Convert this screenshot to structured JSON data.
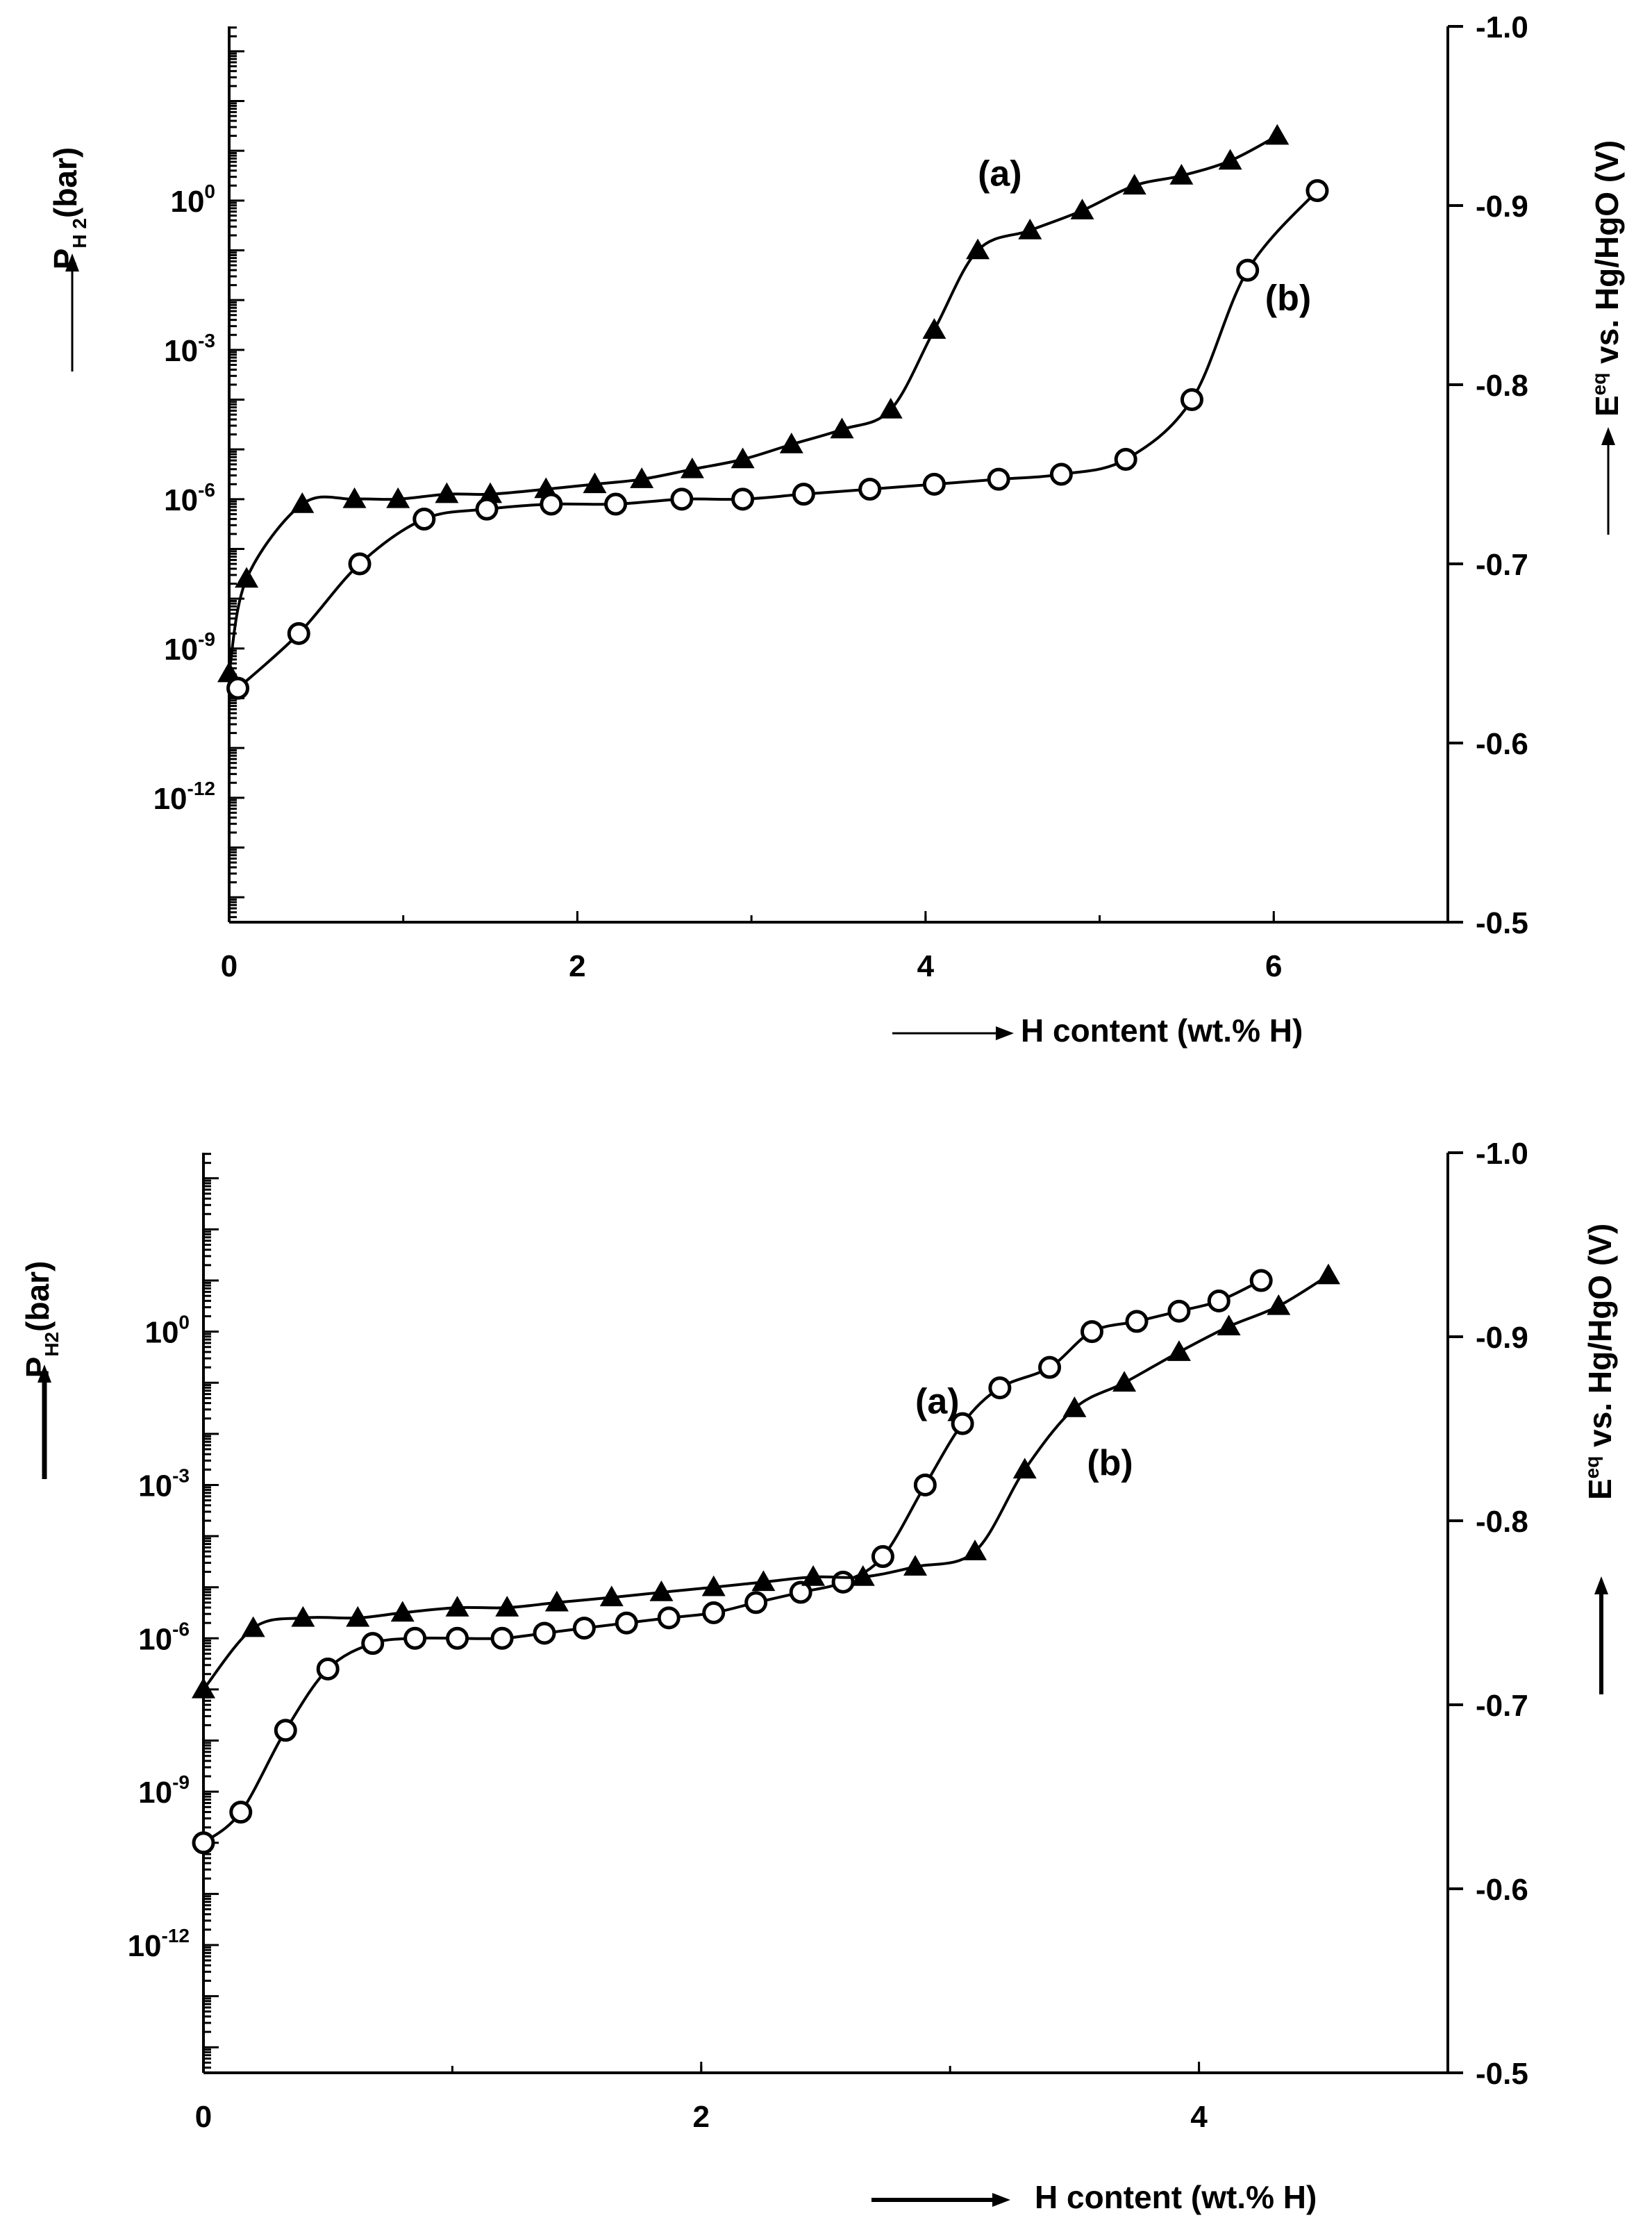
{
  "chart_data": [
    {
      "type": "scatter",
      "xlabel": "H content  (wt.% H)",
      "ylabel_left": {
        "base": "P",
        "sub": "H 2",
        "unit": "(bar)"
      },
      "ylabel_right": {
        "base": "E",
        "sup": "eq",
        "rest": "vs. Hg/HgO (V)"
      },
      "xlim": [
        0,
        7
      ],
      "x_ticks": [
        "0",
        "2",
        "4",
        "6"
      ],
      "x_tick_values": [
        0,
        2,
        4,
        6
      ],
      "ylim_log10": [
        -14.5,
        3.5
      ],
      "y_left_ticks": [
        {
          "exp": 0,
          "label_base": "10",
          "label_exp": "0"
        },
        {
          "exp": -3,
          "label_base": "10",
          "label_exp": "-3"
        },
        {
          "exp": -6,
          "label_base": "10",
          "label_exp": "-6"
        },
        {
          "exp": -9,
          "label_base": "10",
          "label_exp": "-9"
        },
        {
          "exp": -12,
          "label_base": "10",
          "label_exp": "-12"
        }
      ],
      "y_right_ticks": [
        "-1.0",
        "-0.9",
        "-0.8",
        "-0.7",
        "-0.6",
        "-0.5"
      ],
      "y_right_lim": [
        -0.5,
        -1.0
      ],
      "series": [
        {
          "name": "(a)",
          "marker": "filled-triangle",
          "label_pos": {
            "x": 4.3,
            "log10": 0.3
          },
          "points": [
            [
              0.0,
              -9.5
            ],
            [
              0.1,
              -7.6
            ],
            [
              0.42,
              -6.1
            ],
            [
              0.72,
              -6.0
            ],
            [
              0.97,
              -6.0
            ],
            [
              1.25,
              -5.9
            ],
            [
              1.5,
              -5.9
            ],
            [
              1.82,
              -5.8
            ],
            [
              2.1,
              -5.7
            ],
            [
              2.37,
              -5.6
            ],
            [
              2.66,
              -5.4
            ],
            [
              2.95,
              -5.2
            ],
            [
              3.23,
              -4.9
            ],
            [
              3.52,
              -4.6
            ],
            [
              3.8,
              -4.2
            ],
            [
              4.05,
              -2.6
            ],
            [
              4.3,
              -1.0
            ],
            [
              4.6,
              -0.6
            ],
            [
              4.9,
              -0.2
            ],
            [
              5.2,
              0.3
            ],
            [
              5.47,
              0.5
            ],
            [
              5.75,
              0.8
            ],
            [
              6.02,
              1.3
            ]
          ]
        },
        {
          "name": "(b)",
          "marker": "open-circle",
          "label_pos": {
            "x": 5.95,
            "log10": -2.2
          },
          "points": [
            [
              0.05,
              -9.8
            ],
            [
              0.4,
              -8.7
            ],
            [
              0.75,
              -7.3
            ],
            [
              1.12,
              -6.4
            ],
            [
              1.48,
              -6.2
            ],
            [
              1.85,
              -6.1
            ],
            [
              2.22,
              -6.1
            ],
            [
              2.6,
              -6.0
            ],
            [
              2.95,
              -6.0
            ],
            [
              3.3,
              -5.9
            ],
            [
              3.68,
              -5.8
            ],
            [
              4.05,
              -5.7
            ],
            [
              4.42,
              -5.6
            ],
            [
              4.78,
              -5.5
            ],
            [
              5.15,
              -5.2
            ],
            [
              5.53,
              -4.0
            ],
            [
              5.85,
              -1.4
            ],
            [
              6.25,
              0.2
            ]
          ]
        }
      ]
    },
    {
      "type": "scatter",
      "xlabel": "H content  (wt.% H)",
      "ylabel_left": {
        "base": "P",
        "sub": "H2",
        "unit": "(bar)"
      },
      "ylabel_right": {
        "base": "E",
        "sup": "eq",
        "rest": "vs. Hg/HgO (V)"
      },
      "xlim": [
        0,
        5
      ],
      "x_ticks": [
        "0",
        "2",
        "4"
      ],
      "x_tick_values": [
        0,
        2,
        4
      ],
      "ylim_log10": [
        -14.5,
        3.5
      ],
      "y_left_ticks": [
        {
          "exp": 0,
          "label_base": "10",
          "label_exp": "0"
        },
        {
          "exp": -3,
          "label_base": "10",
          "label_exp": "-3"
        },
        {
          "exp": -6,
          "label_base": "10",
          "label_exp": "-6"
        },
        {
          "exp": -9,
          "label_base": "10",
          "label_exp": "-9"
        },
        {
          "exp": -12,
          "label_base": "10",
          "label_exp": "-12"
        }
      ],
      "y_right_ticks": [
        "-1.0",
        "-0.9",
        "-0.8",
        "-0.7",
        "-0.6",
        "-0.5"
      ],
      "y_right_lim": [
        -0.5,
        -1.0
      ],
      "series": [
        {
          "name": "(a)",
          "marker": "open-circle",
          "label_pos": {
            "x": 2.86,
            "log10": -1.6
          },
          "points": [
            [
              0.0,
              -10.0
            ],
            [
              0.15,
              -9.4
            ],
            [
              0.33,
              -7.8
            ],
            [
              0.5,
              -6.6
            ],
            [
              0.68,
              -6.1
            ],
            [
              0.85,
              -6.0
            ],
            [
              1.02,
              -6.0
            ],
            [
              1.2,
              -6.0
            ],
            [
              1.37,
              -5.9
            ],
            [
              1.53,
              -5.8
            ],
            [
              1.7,
              -5.7
            ],
            [
              1.87,
              -5.6
            ],
            [
              2.05,
              -5.5
            ],
            [
              2.22,
              -5.3
            ],
            [
              2.4,
              -5.1
            ],
            [
              2.57,
              -4.9
            ],
            [
              2.73,
              -4.4
            ],
            [
              2.9,
              -3.0
            ],
            [
              3.05,
              -1.8
            ],
            [
              3.2,
              -1.1
            ],
            [
              3.4,
              -0.7
            ],
            [
              3.57,
              0.0
            ],
            [
              3.75,
              0.2
            ],
            [
              3.92,
              0.4
            ],
            [
              4.08,
              0.6
            ],
            [
              4.25,
              1.0
            ]
          ]
        },
        {
          "name": "(b)",
          "marker": "filled-triangle",
          "label_pos": {
            "x": 3.55,
            "log10": -2.8
          },
          "points": [
            [
              0.0,
              -7.0
            ],
            [
              0.2,
              -5.8
            ],
            [
              0.4,
              -5.6
            ],
            [
              0.62,
              -5.6
            ],
            [
              0.8,
              -5.5
            ],
            [
              1.02,
              -5.4
            ],
            [
              1.22,
              -5.4
            ],
            [
              1.42,
              -5.3
            ],
            [
              1.64,
              -5.2
            ],
            [
              1.84,
              -5.1
            ],
            [
              2.05,
              -5.0
            ],
            [
              2.25,
              -4.9
            ],
            [
              2.45,
              -4.8
            ],
            [
              2.65,
              -4.8
            ],
            [
              2.86,
              -4.6
            ],
            [
              3.1,
              -4.3
            ],
            [
              3.3,
              -2.7
            ],
            [
              3.5,
              -1.5
            ],
            [
              3.7,
              -1.0
            ],
            [
              3.92,
              -0.4
            ],
            [
              4.12,
              0.1
            ],
            [
              4.32,
              0.5
            ],
            [
              4.52,
              1.1
            ]
          ]
        }
      ]
    }
  ]
}
